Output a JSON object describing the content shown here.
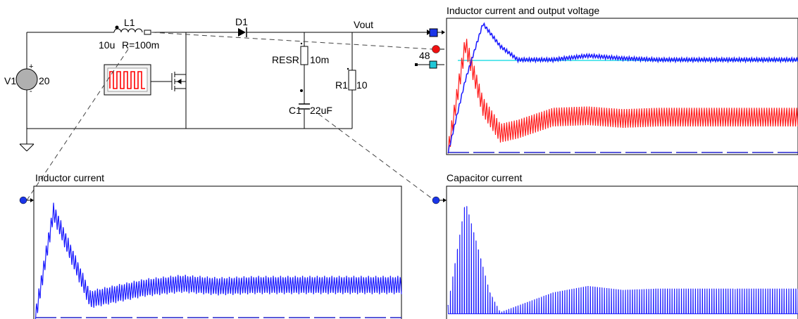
{
  "schematic": {
    "l1_name": "L1",
    "l1_value": "10u",
    "l1_resistance": "R=100m",
    "d1_name": "D1",
    "vout_label": "Vout",
    "v1_name": "V1",
    "v1_value": "20",
    "resr_name": "RESR",
    "resr_value": "10m",
    "r1_name": "R1",
    "r1_value": "10",
    "c1_name": "C1",
    "c1_value": "22uF",
    "probe_value": "48",
    "plus_sign": "+",
    "minus_sign": "-"
  },
  "scopes": {
    "top": {
      "title": "Inductor current and output voltage"
    },
    "bottom_left": {
      "title": "Inductor current"
    },
    "bottom_right": {
      "title": "Capacitor current"
    }
  },
  "colors": {
    "wire": "#000000",
    "trace_blue": "#1a1aff",
    "trace_red": "#ff1a1a",
    "reference_cyan": "#00d8e0",
    "probe_blue": "#1a35e8",
    "probe_red": "#ee1111",
    "probe_cyan": "#20c8d8"
  },
  "chart_data": [
    {
      "type": "line",
      "title": "Inductor current and output voltage",
      "x": [
        0.0,
        0.05,
        0.1,
        0.15,
        0.2,
        0.3,
        0.4,
        0.5,
        0.6,
        0.7,
        0.8,
        0.9,
        1.0
      ],
      "series": [
        {
          "values": [
            0.0,
            0.55,
            0.97,
            0.8,
            0.7,
            0.7,
            0.73,
            0.71,
            0.7,
            0.7,
            0.7,
            0.7,
            0.7
          ]
        },
        {
          "values": [
            0.0,
            0.82,
            0.35,
            0.15,
            0.18,
            0.27,
            0.28,
            0.26,
            0.27,
            0.27,
            0.27,
            0.27,
            0.27
          ]
        }
      ]
    },
    {
      "type": "line",
      "title": "Inductor current",
      "x": [
        0.0,
        0.05,
        0.12,
        0.15,
        0.3,
        0.4,
        0.5,
        0.6,
        0.7,
        0.8,
        0.9,
        1.0
      ],
      "series": [
        {
          "values": [
            0.0,
            0.82,
            0.35,
            0.15,
            0.24,
            0.27,
            0.25,
            0.26,
            0.26,
            0.26,
            0.26,
            0.26
          ]
        }
      ]
    },
    {
      "type": "line",
      "title": "Capacitor current",
      "x": [
        0.0,
        0.05,
        0.12,
        0.15,
        0.3,
        0.4,
        0.5,
        0.6,
        0.7,
        0.8,
        0.9,
        1.0
      ],
      "series": [
        {
          "values": [
            0.1,
            0.9,
            0.2,
            0.05,
            0.2,
            0.25,
            0.22,
            0.23,
            0.23,
            0.23,
            0.23,
            0.23
          ]
        }
      ]
    }
  ]
}
